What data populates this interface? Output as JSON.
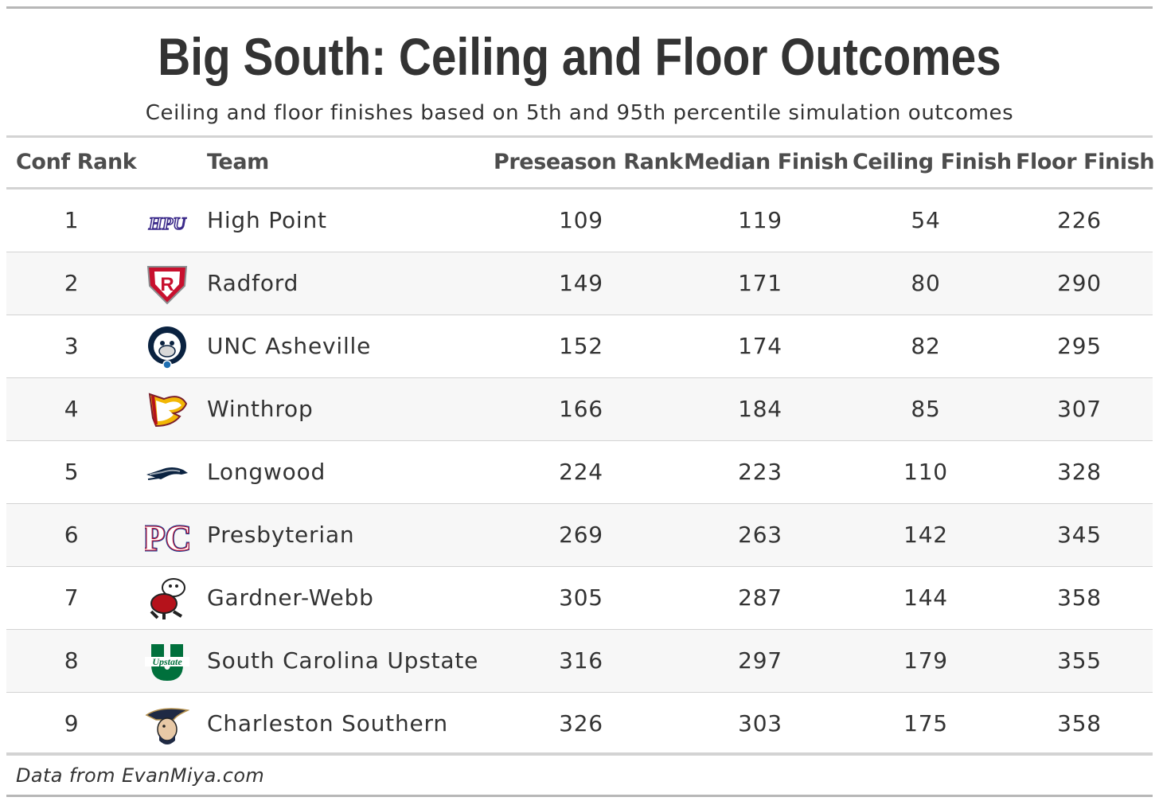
{
  "title": "Big South: Ceiling and Floor Outcomes",
  "subtitle": "Ceiling and floor finishes based on 5th and 95th percentile simulation outcomes",
  "columns": {
    "conf_rank": "Conf Rank",
    "team": "Team",
    "preseason_rank": "Preseason Rank",
    "median_finish": "Median Finish",
    "ceiling_finish": "Ceiling Finish",
    "floor_finish": "Floor Finish"
  },
  "rows": [
    {
      "conf_rank": "1",
      "team": "High Point",
      "logo": "high-point-logo",
      "preseason_rank": "109",
      "median_finish": "119",
      "ceiling_finish": "54",
      "floor_finish": "226"
    },
    {
      "conf_rank": "2",
      "team": "Radford",
      "logo": "radford-logo",
      "preseason_rank": "149",
      "median_finish": "171",
      "ceiling_finish": "80",
      "floor_finish": "290"
    },
    {
      "conf_rank": "3",
      "team": "UNC Asheville",
      "logo": "unc-asheville-logo",
      "preseason_rank": "152",
      "median_finish": "174",
      "ceiling_finish": "82",
      "floor_finish": "295"
    },
    {
      "conf_rank": "4",
      "team": "Winthrop",
      "logo": "winthrop-logo",
      "preseason_rank": "166",
      "median_finish": "184",
      "ceiling_finish": "85",
      "floor_finish": "307"
    },
    {
      "conf_rank": "5",
      "team": "Longwood",
      "logo": "longwood-logo",
      "preseason_rank": "224",
      "median_finish": "223",
      "ceiling_finish": "110",
      "floor_finish": "328"
    },
    {
      "conf_rank": "6",
      "team": "Presbyterian",
      "logo": "presbyterian-logo",
      "preseason_rank": "269",
      "median_finish": "263",
      "ceiling_finish": "142",
      "floor_finish": "345"
    },
    {
      "conf_rank": "7",
      "team": "Gardner-Webb",
      "logo": "gardner-webb-logo",
      "preseason_rank": "305",
      "median_finish": "287",
      "ceiling_finish": "144",
      "floor_finish": "358"
    },
    {
      "conf_rank": "8",
      "team": "South Carolina Upstate",
      "logo": "sc-upstate-logo",
      "preseason_rank": "316",
      "median_finish": "297",
      "ceiling_finish": "179",
      "floor_finish": "355"
    },
    {
      "conf_rank": "9",
      "team": "Charleston Southern",
      "logo": "charleston-southern-logo",
      "preseason_rank": "326",
      "median_finish": "303",
      "ceiling_finish": "175",
      "floor_finish": "358"
    }
  ],
  "logo_text": {
    "high_point": "HPU",
    "radford": "R",
    "presbyterian": "PC",
    "sc_upstate": "Upstate"
  },
  "footer": "Data from EvanMiya.com",
  "colors": {
    "text": "#333333",
    "header_text": "#4d4d4d",
    "rule": "#d3d3d3",
    "row_alt": "#f7f7f7"
  }
}
